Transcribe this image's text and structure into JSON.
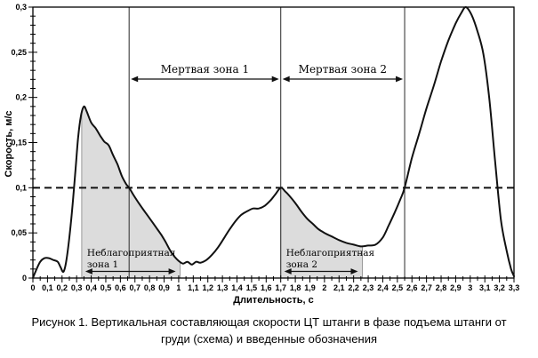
{
  "caption": "Рисунок 1. Вертикальная составляющая скорости ЦТ штанги в фазе подъема штанги от груди (схема) и введенные обозначения",
  "chart_data": {
    "type": "line",
    "title": "",
    "xlabel": "Длительность, с",
    "ylabel": "Скорость, м/с",
    "xlim": [
      0,
      3.3
    ],
    "ylim": [
      0,
      0.3
    ],
    "grid": false,
    "legend": "none",
    "x_tick_step": 0.1,
    "x_minor_step": 0.05,
    "y_tick_step": 0.05,
    "y_minor_step": 0.01,
    "x_tick_labels": [
      "0",
      "0,1",
      "0,2",
      "0,3",
      "0,4",
      "0,5",
      "0,6",
      "0,7",
      "0,8",
      "0,9",
      "1",
      "1,1",
      "1,2",
      "1,3",
      "1,4",
      "1,5",
      "1,6",
      "1,7",
      "1,8",
      "1,9",
      "2",
      "2,1",
      "2,2",
      "2,3",
      "2,4",
      "2,5",
      "2,6",
      "2,7",
      "2,8",
      "2,9",
      "3",
      "3,1",
      "3,2",
      "3,3"
    ],
    "y_tick_labels": [
      "0",
      "0,05",
      "0,1",
      "0,15",
      "0,2",
      "0,25",
      "0,3"
    ],
    "threshold_line": {
      "y": 0.1,
      "style": "dashed"
    },
    "series": [
      {
        "name": "barbell-cg-vertical-velocity",
        "points": [
          [
            0,
            0
          ],
          [
            0.02,
            0.008
          ],
          [
            0.05,
            0.018
          ],
          [
            0.08,
            0.022
          ],
          [
            0.11,
            0.022
          ],
          [
            0.14,
            0.02
          ],
          [
            0.17,
            0.018
          ],
          [
            0.19,
            0.012
          ],
          [
            0.21,
            0.007
          ],
          [
            0.23,
            0.02
          ],
          [
            0.26,
            0.06
          ],
          [
            0.29,
            0.115
          ],
          [
            0.31,
            0.155
          ],
          [
            0.33,
            0.18
          ],
          [
            0.35,
            0.19
          ],
          [
            0.37,
            0.184
          ],
          [
            0.4,
            0.172
          ],
          [
            0.43,
            0.166
          ],
          [
            0.46,
            0.158
          ],
          [
            0.49,
            0.151
          ],
          [
            0.52,
            0.147
          ],
          [
            0.55,
            0.136
          ],
          [
            0.58,
            0.126
          ],
          [
            0.61,
            0.113
          ],
          [
            0.64,
            0.104
          ],
          [
            0.66,
            0.1
          ],
          [
            0.69,
            0.092
          ],
          [
            0.73,
            0.082
          ],
          [
            0.77,
            0.073
          ],
          [
            0.81,
            0.064
          ],
          [
            0.85,
            0.055
          ],
          [
            0.88,
            0.048
          ],
          [
            0.91,
            0.04
          ],
          [
            0.94,
            0.031
          ],
          [
            0.97,
            0.024
          ],
          [
            1.0,
            0.019
          ],
          [
            1.03,
            0.016
          ],
          [
            1.06,
            0.018
          ],
          [
            1.09,
            0.015
          ],
          [
            1.12,
            0.018
          ],
          [
            1.15,
            0.017
          ],
          [
            1.19,
            0.02
          ],
          [
            1.23,
            0.026
          ],
          [
            1.27,
            0.034
          ],
          [
            1.31,
            0.044
          ],
          [
            1.35,
            0.054
          ],
          [
            1.39,
            0.063
          ],
          [
            1.43,
            0.07
          ],
          [
            1.47,
            0.074
          ],
          [
            1.51,
            0.077
          ],
          [
            1.55,
            0.077
          ],
          [
            1.59,
            0.08
          ],
          [
            1.63,
            0.086
          ],
          [
            1.66,
            0.092
          ],
          [
            1.7,
            0.1
          ],
          [
            1.73,
            0.096
          ],
          [
            1.76,
            0.091
          ],
          [
            1.8,
            0.083
          ],
          [
            1.84,
            0.074
          ],
          [
            1.88,
            0.066
          ],
          [
            1.92,
            0.06
          ],
          [
            1.96,
            0.054
          ],
          [
            2.0,
            0.05
          ],
          [
            2.05,
            0.046
          ],
          [
            2.1,
            0.042
          ],
          [
            2.15,
            0.039
          ],
          [
            2.2,
            0.037
          ],
          [
            2.25,
            0.035
          ],
          [
            2.3,
            0.036
          ],
          [
            2.35,
            0.037
          ],
          [
            2.4,
            0.045
          ],
          [
            2.44,
            0.058
          ],
          [
            2.48,
            0.072
          ],
          [
            2.52,
            0.087
          ],
          [
            2.55,
            0.1
          ],
          [
            2.6,
            0.133
          ],
          [
            2.65,
            0.16
          ],
          [
            2.7,
            0.188
          ],
          [
            2.75,
            0.213
          ],
          [
            2.8,
            0.24
          ],
          [
            2.85,
            0.263
          ],
          [
            2.9,
            0.282
          ],
          [
            2.94,
            0.294
          ],
          [
            2.97,
            0.3
          ],
          [
            3.01,
            0.291
          ],
          [
            3.05,
            0.273
          ],
          [
            3.09,
            0.248
          ],
          [
            3.13,
            0.2
          ],
          [
            3.17,
            0.13
          ],
          [
            3.21,
            0.065
          ],
          [
            3.25,
            0.03
          ],
          [
            3.28,
            0.01
          ],
          [
            3.3,
            0.002
          ]
        ]
      }
    ],
    "dead_zones": [
      {
        "label": "Мертвая зона 1",
        "from": 0.66,
        "to": 1.7
      },
      {
        "label": "Мертвая зона 2",
        "from": 1.7,
        "to": 2.55
      }
    ],
    "unfavorable_zones": [
      {
        "label_lines": [
          "Неблагоприятная",
          "зона 1"
        ],
        "from": 0.335,
        "to": 1.01
      },
      {
        "label_lines": [
          "Неблагоприятная",
          "зона 2"
        ],
        "from": 1.7,
        "to": 2.26
      }
    ],
    "colors": {
      "curve": "#111111",
      "zone_fill": "#dcdcdc",
      "zone_border": "#9a9a9a",
      "boundary_line": "#3c3c3c",
      "axis": "#000000",
      "background": "#ffffff"
    }
  }
}
